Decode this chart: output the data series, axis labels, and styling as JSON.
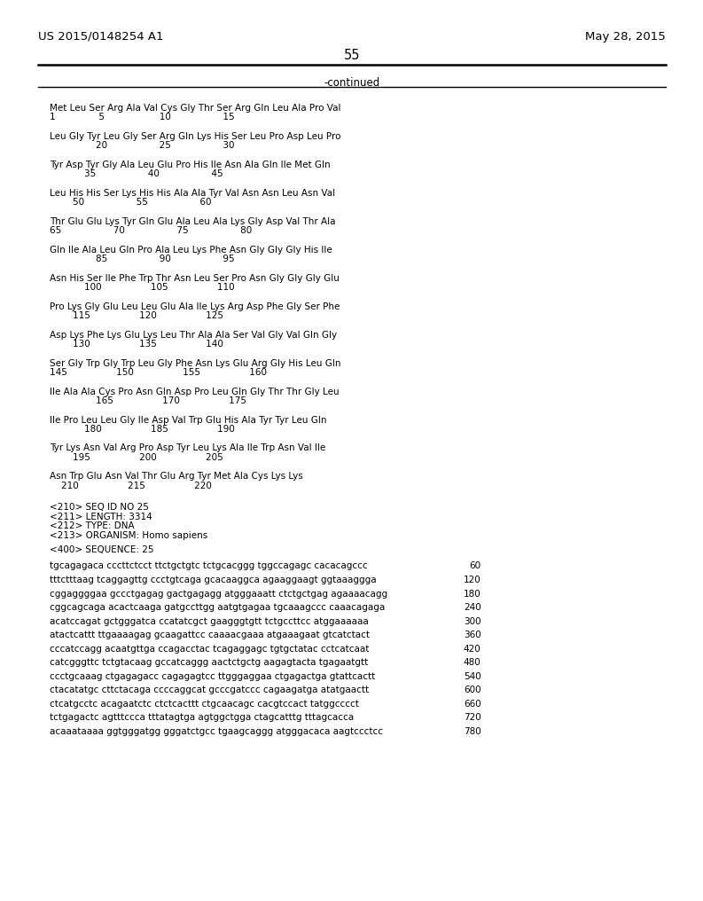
{
  "header_left": "US 2015/0148254 A1",
  "header_right": "May 28, 2015",
  "page_number": "55",
  "continued_text": "-continued",
  "background_color": "#ffffff",
  "font_size_header": 9.5,
  "font_size_page": 10.5,
  "font_size_body": 7.5,
  "font_size_continued": 8.5,
  "seq_blocks": [
    [
      "Met Leu Ser Arg Ala Val Cys Gly Thr Ser Arg Gln Leu Ala Pro Val",
      "1               5                   10                  15"
    ],
    [
      "Leu Gly Tyr Leu Gly Ser Arg Gln Lys His Ser Leu Pro Asp Leu Pro",
      "                20                  25                  30"
    ],
    [
      "Tyr Asp Tyr Gly Ala Leu Glu Pro His Ile Asn Ala Gln Ile Met Gln",
      "            35                  40                  45"
    ],
    [
      "Leu His His Ser Lys His His Ala Ala Tyr Val Asn Asn Leu Asn Val",
      "        50                  55                  60"
    ],
    [
      "Thr Glu Glu Lys Tyr Gln Glu Ala Leu Ala Lys Gly Asp Val Thr Ala",
      "65                  70                  75                  80"
    ],
    [
      "Gln Ile Ala Leu Gln Pro Ala Leu Lys Phe Asn Gly Gly Gly His Ile",
      "                85                  90                  95"
    ],
    [
      "Asn His Ser Ile Phe Trp Thr Asn Leu Ser Pro Asn Gly Gly Gly Glu",
      "            100                 105                 110"
    ],
    [
      "Pro Lys Gly Glu Leu Leu Glu Ala Ile Lys Arg Asp Phe Gly Ser Phe",
      "        115                 120                 125"
    ],
    [
      "Asp Lys Phe Lys Glu Lys Leu Thr Ala Ala Ser Val Gly Val Gln Gly",
      "        130                 135                 140"
    ],
    [
      "Ser Gly Trp Gly Trp Leu Gly Phe Asn Lys Glu Arg Gly His Leu Gln",
      "145                 150                 155                 160"
    ],
    [
      "Ile Ala Ala Cys Pro Asn Gln Asp Pro Leu Gln Gly Thr Thr Gly Leu",
      "                165                 170                 175"
    ],
    [
      "Ile Pro Leu Leu Gly Ile Asp Val Trp Glu His Ala Tyr Tyr Leu Gln",
      "            180                 185                 190"
    ],
    [
      "Tyr Lys Asn Val Arg Pro Asp Tyr Leu Lys Ala Ile Trp Asn Val Ile",
      "        195                 200                 205"
    ],
    [
      "Asn Trp Glu Asn Val Thr Glu Arg Tyr Met Ala Cys Lys Lys",
      "    210                 215                 220"
    ]
  ],
  "metadata": [
    "<210> SEQ ID NO 25",
    "<211> LENGTH: 3314",
    "<212> TYPE: DNA",
    "<213> ORGANISM: Homo sapiens",
    "",
    "<400> SEQUENCE: 25"
  ],
  "dna_lines": [
    [
      "tgcagagaca cccttctcct ttctgctgtc tctgcacggg tggccagagc cacacagccc",
      "60"
    ],
    [
      "tttctttaag tcaggagttg ccctgtcaga gcacaaggca agaaggaagt ggtaaaggga",
      "120"
    ],
    [
      "cggaggggaa gccctgagag gactgagagg atgggaaatt ctctgctgag agaaaacagg",
      "180"
    ],
    [
      "cggcagcaga acactcaaga gatgccttgg aatgtgagaa tgcaaagccc caaacagaga",
      "240"
    ],
    [
      "acatccagat gctgggatca ccatatcgct gaagggtgtt tctgccttcc atggaaaaaa",
      "300"
    ],
    [
      "atactcattt ttgaaaagag gcaagattcc caaaacgaaa atgaaagaat gtcatctact",
      "360"
    ],
    [
      "cccatccagg acaatgttga ccagacctac tcagaggagc tgtgctatac cctcatcaat",
      "420"
    ],
    [
      "catcgggttc tctgtacaag gccatcaggg aactctgctg aagagtacta tgagaatgtt",
      "480"
    ],
    [
      "ccctgcaaag ctgagagacc cagagagtcc ttgggaggaa ctgagactga gtattcactt",
      "540"
    ],
    [
      "ctacatatgc cttctacaga ccccaggcat gcccgatccc cagaagatga atatgaactt",
      "600"
    ],
    [
      "ctcatgcctc acagaatctc ctctcacttt ctgcaacagc cacgtccact tatggcccct",
      "660"
    ],
    [
      "tctgagactc agtttccca tttatagtga agtggctgga ctagcatttg tttagcacca",
      "720"
    ],
    [
      "acaaataaaa ggtgggatgg gggatctgcc tgaagcaggg atgggacaca aagtccctcc",
      "780"
    ]
  ]
}
